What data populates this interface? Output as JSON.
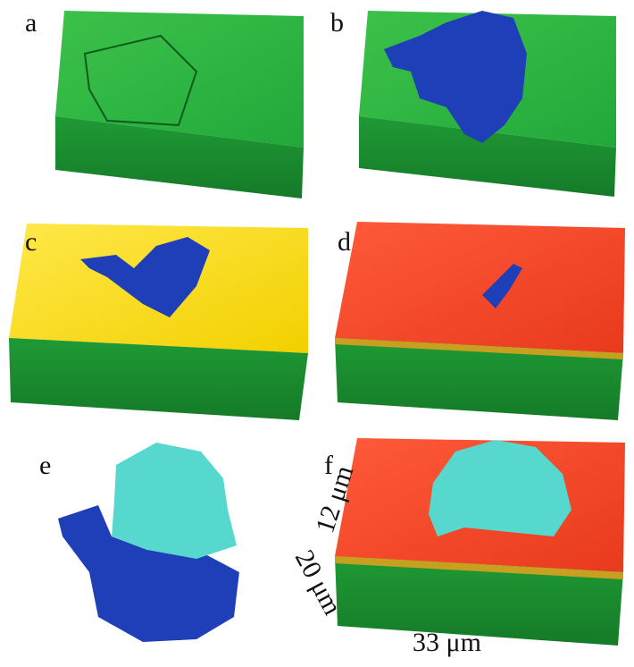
{
  "panels": [
    {
      "label": "a"
    },
    {
      "label": "b"
    },
    {
      "label": "c"
    },
    {
      "label": "d"
    },
    {
      "label": "e"
    },
    {
      "label": "f"
    }
  ],
  "scale_labels": {
    "height": "12 μm",
    "depth": "20 μm",
    "width": "33 μm"
  }
}
